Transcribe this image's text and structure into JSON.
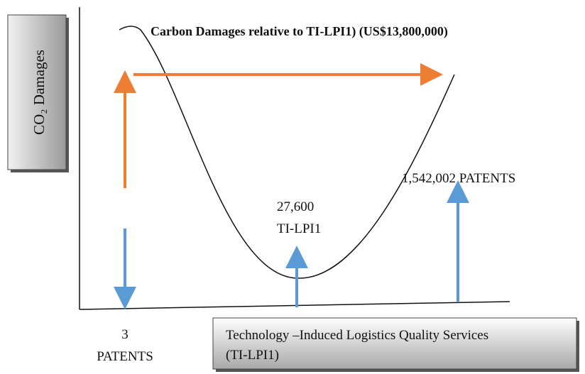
{
  "y_axis_box": {
    "label": "CO₂ Damages"
  },
  "title": "Carbon Damages relative to TI-LPI1) (US$13,800,000)",
  "right_label": "1,542,002 PATENTS",
  "min_label": {
    "value": "27,600",
    "name": "TI-LPI1"
  },
  "left_label": {
    "value": "3",
    "unit": "PATENTS"
  },
  "x_axis_box": {
    "line1": "Technology –Induced Logistics Quality Services",
    "line2": "(TI-LPI1)"
  }
}
